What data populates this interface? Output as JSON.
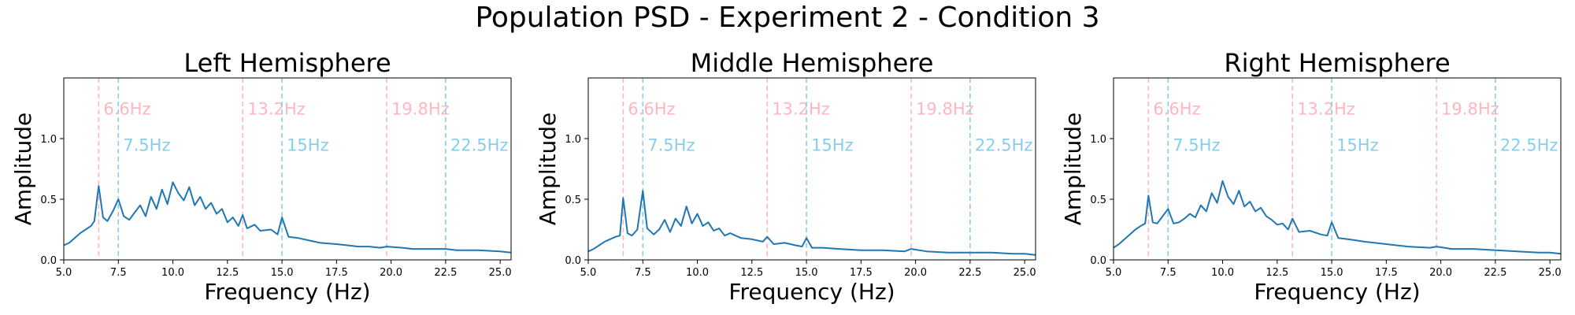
{
  "figure_title": "Population PSD - Experiment 2 - Condition 3",
  "colors": {
    "line": "#1f77b4",
    "pink": "#ffb6c1",
    "blue": "#87ceeb",
    "axis": "#000000"
  },
  "chart_data": [
    {
      "type": "line",
      "title": "Left Hemisphere",
      "xlabel": "Frequency (Hz)",
      "ylabel": "Amplitude",
      "xlim": [
        5.0,
        25.5
      ],
      "ylim": [
        0.0,
        1.5
      ],
      "xticks": [
        "5.0",
        "7.5",
        "10.0",
        "12.5",
        "15.0",
        "17.5",
        "20.0",
        "22.5",
        "25.0"
      ],
      "yticks": [
        "0.0",
        "0.5",
        "1.0"
      ],
      "vlines": [
        {
          "x": 6.6,
          "label": "6.6Hz",
          "color": "pink",
          "label_y": 1.25
        },
        {
          "x": 7.5,
          "label": "7.5Hz",
          "color": "blue",
          "label_y": 0.95
        },
        {
          "x": 13.2,
          "label": "13.2Hz",
          "color": "pink",
          "label_y": 1.25
        },
        {
          "x": 15.0,
          "label": "15Hz",
          "color": "blue",
          "label_y": 0.95
        },
        {
          "x": 19.8,
          "label": "19.8Hz",
          "color": "pink",
          "label_y": 1.25
        },
        {
          "x": 22.5,
          "label": "22.5Hz",
          "color": "blue",
          "label_y": 0.95
        }
      ],
      "x": [
        5.0,
        5.25,
        5.5,
        5.75,
        6.0,
        6.25,
        6.4,
        6.6,
        6.8,
        7.0,
        7.25,
        7.5,
        7.75,
        8.0,
        8.25,
        8.5,
        8.75,
        9.0,
        9.25,
        9.5,
        9.75,
        10.0,
        10.25,
        10.5,
        10.75,
        11.0,
        11.25,
        11.5,
        11.75,
        12.0,
        12.25,
        12.5,
        12.75,
        13.0,
        13.2,
        13.4,
        13.75,
        14.0,
        14.5,
        14.8,
        15.0,
        15.3,
        15.75,
        16.25,
        16.75,
        17.5,
        18.0,
        18.5,
        19.0,
        19.5,
        19.8,
        20.5,
        21.0,
        22.0,
        22.5,
        23.0,
        24.0,
        25.0,
        25.5
      ],
      "y": [
        0.12,
        0.14,
        0.18,
        0.22,
        0.25,
        0.28,
        0.32,
        0.61,
        0.35,
        0.32,
        0.4,
        0.5,
        0.36,
        0.33,
        0.39,
        0.45,
        0.36,
        0.52,
        0.42,
        0.58,
        0.46,
        0.64,
        0.55,
        0.49,
        0.6,
        0.45,
        0.52,
        0.42,
        0.47,
        0.38,
        0.42,
        0.31,
        0.35,
        0.28,
        0.37,
        0.26,
        0.29,
        0.24,
        0.25,
        0.21,
        0.35,
        0.19,
        0.18,
        0.16,
        0.14,
        0.13,
        0.12,
        0.11,
        0.11,
        0.1,
        0.11,
        0.1,
        0.09,
        0.09,
        0.09,
        0.08,
        0.08,
        0.07,
        0.06
      ]
    },
    {
      "type": "line",
      "title": "Middle Hemisphere",
      "xlabel": "Frequency (Hz)",
      "ylabel": "Amplitude",
      "xlim": [
        5.0,
        25.5
      ],
      "ylim": [
        0.0,
        1.5
      ],
      "xticks": [
        "5.0",
        "7.5",
        "10.0",
        "12.5",
        "15.0",
        "17.5",
        "20.0",
        "22.5",
        "25.0"
      ],
      "yticks": [
        "0.0",
        "0.5",
        "1.0"
      ],
      "vlines": [
        {
          "x": 6.6,
          "label": "6.6Hz",
          "color": "pink",
          "label_y": 1.25
        },
        {
          "x": 7.5,
          "label": "7.5Hz",
          "color": "blue",
          "label_y": 0.95
        },
        {
          "x": 13.2,
          "label": "13.2Hz",
          "color": "pink",
          "label_y": 1.25
        },
        {
          "x": 15.0,
          "label": "15Hz",
          "color": "blue",
          "label_y": 0.95
        },
        {
          "x": 19.8,
          "label": "19.8Hz",
          "color": "pink",
          "label_y": 1.25
        },
        {
          "x": 22.5,
          "label": "22.5Hz",
          "color": "blue",
          "label_y": 0.95
        }
      ],
      "x": [
        5.0,
        5.25,
        5.5,
        5.75,
        6.0,
        6.25,
        6.45,
        6.6,
        6.8,
        7.0,
        7.25,
        7.5,
        7.7,
        8.0,
        8.25,
        8.5,
        8.75,
        9.0,
        9.25,
        9.5,
        9.75,
        10.0,
        10.25,
        10.5,
        10.75,
        11.0,
        11.25,
        11.5,
        12.0,
        12.5,
        13.0,
        13.2,
        13.5,
        14.0,
        14.5,
        14.8,
        15.0,
        15.25,
        15.75,
        16.5,
        17.5,
        18.5,
        19.5,
        19.8,
        20.5,
        21.5,
        22.5,
        23.5,
        24.5,
        25.0,
        25.5
      ],
      "y": [
        0.07,
        0.09,
        0.12,
        0.15,
        0.17,
        0.19,
        0.2,
        0.51,
        0.22,
        0.2,
        0.25,
        0.57,
        0.26,
        0.21,
        0.25,
        0.33,
        0.23,
        0.34,
        0.28,
        0.44,
        0.3,
        0.38,
        0.28,
        0.31,
        0.24,
        0.26,
        0.2,
        0.22,
        0.18,
        0.17,
        0.15,
        0.19,
        0.13,
        0.14,
        0.12,
        0.11,
        0.18,
        0.1,
        0.1,
        0.09,
        0.08,
        0.08,
        0.07,
        0.09,
        0.07,
        0.06,
        0.06,
        0.06,
        0.05,
        0.05,
        0.04
      ]
    },
    {
      "type": "line",
      "title": "Right Hemisphere",
      "xlabel": "Frequency (Hz)",
      "ylabel": "Amplitude",
      "xlim": [
        5.0,
        25.5
      ],
      "ylim": [
        0.0,
        1.5
      ],
      "xticks": [
        "5.0",
        "7.5",
        "10.0",
        "12.5",
        "15.0",
        "17.5",
        "20.0",
        "22.5",
        "25.0"
      ],
      "yticks": [
        "0.0",
        "0.5",
        "1.0"
      ],
      "vlines": [
        {
          "x": 6.6,
          "label": "6.6Hz",
          "color": "pink",
          "label_y": 1.25
        },
        {
          "x": 7.5,
          "label": "7.5Hz",
          "color": "blue",
          "label_y": 0.95
        },
        {
          "x": 13.2,
          "label": "13.2Hz",
          "color": "pink",
          "label_y": 1.25
        },
        {
          "x": 15.0,
          "label": "15Hz",
          "color": "blue",
          "label_y": 0.95
        },
        {
          "x": 19.8,
          "label": "19.8Hz",
          "color": "pink",
          "label_y": 1.25
        },
        {
          "x": 22.5,
          "label": "22.5Hz",
          "color": "blue",
          "label_y": 0.95
        }
      ],
      "x": [
        5.0,
        5.25,
        5.5,
        5.75,
        6.0,
        6.25,
        6.45,
        6.6,
        6.8,
        7.0,
        7.25,
        7.5,
        7.75,
        8.0,
        8.25,
        8.5,
        8.75,
        9.0,
        9.25,
        9.5,
        9.75,
        10.0,
        10.25,
        10.5,
        10.75,
        11.0,
        11.25,
        11.5,
        11.75,
        12.0,
        12.25,
        12.5,
        12.75,
        13.0,
        13.2,
        13.5,
        14.0,
        14.5,
        14.8,
        15.0,
        15.3,
        15.75,
        16.5,
        17.5,
        18.5,
        19.5,
        19.8,
        20.5,
        21.5,
        22.5,
        23.5,
        24.5,
        25.0,
        25.5
      ],
      "y": [
        0.1,
        0.13,
        0.17,
        0.21,
        0.25,
        0.28,
        0.3,
        0.53,
        0.31,
        0.3,
        0.36,
        0.42,
        0.3,
        0.31,
        0.34,
        0.38,
        0.35,
        0.45,
        0.4,
        0.55,
        0.47,
        0.65,
        0.52,
        0.46,
        0.57,
        0.44,
        0.48,
        0.4,
        0.43,
        0.36,
        0.33,
        0.29,
        0.3,
        0.25,
        0.34,
        0.23,
        0.24,
        0.21,
        0.2,
        0.31,
        0.18,
        0.17,
        0.15,
        0.13,
        0.11,
        0.1,
        0.11,
        0.09,
        0.09,
        0.08,
        0.07,
        0.06,
        0.06,
        0.05
      ]
    }
  ]
}
